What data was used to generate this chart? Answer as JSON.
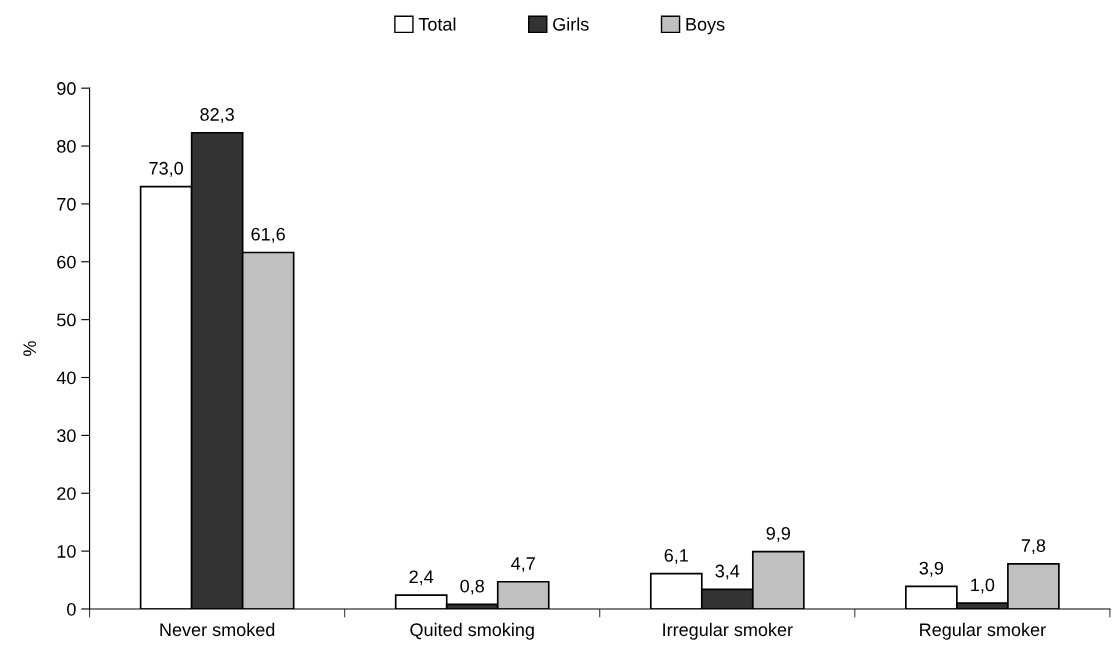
{
  "chart_data": {
    "type": "bar",
    "ylabel": "%",
    "categories": [
      "Never smoked",
      "Quited smoking",
      "Irregular smoker",
      "Regular smoker"
    ],
    "series": [
      {
        "name": "Total",
        "color": "#ffffff",
        "values": [
          73.0,
          2.4,
          6.1,
          3.9
        ],
        "value_labels": [
          "73,0",
          "2,4",
          "6,1",
          "3,9"
        ]
      },
      {
        "name": "Girls",
        "color": "#333333",
        "values": [
          82.3,
          0.8,
          3.4,
          1.0
        ],
        "value_labels": [
          "82,3",
          "0,8",
          "3,4",
          "1,0"
        ]
      },
      {
        "name": "Boys",
        "color": "#c0c0c0",
        "values": [
          61.6,
          4.7,
          9.9,
          7.8
        ],
        "value_labels": [
          "61,6",
          "4,7",
          "9,9",
          "7,8"
        ]
      }
    ],
    "ylim": [
      0,
      90
    ],
    "yticks": [
      0,
      10,
      20,
      30,
      40,
      50,
      60,
      70,
      80,
      90
    ],
    "grid": false,
    "legend": "top"
  }
}
